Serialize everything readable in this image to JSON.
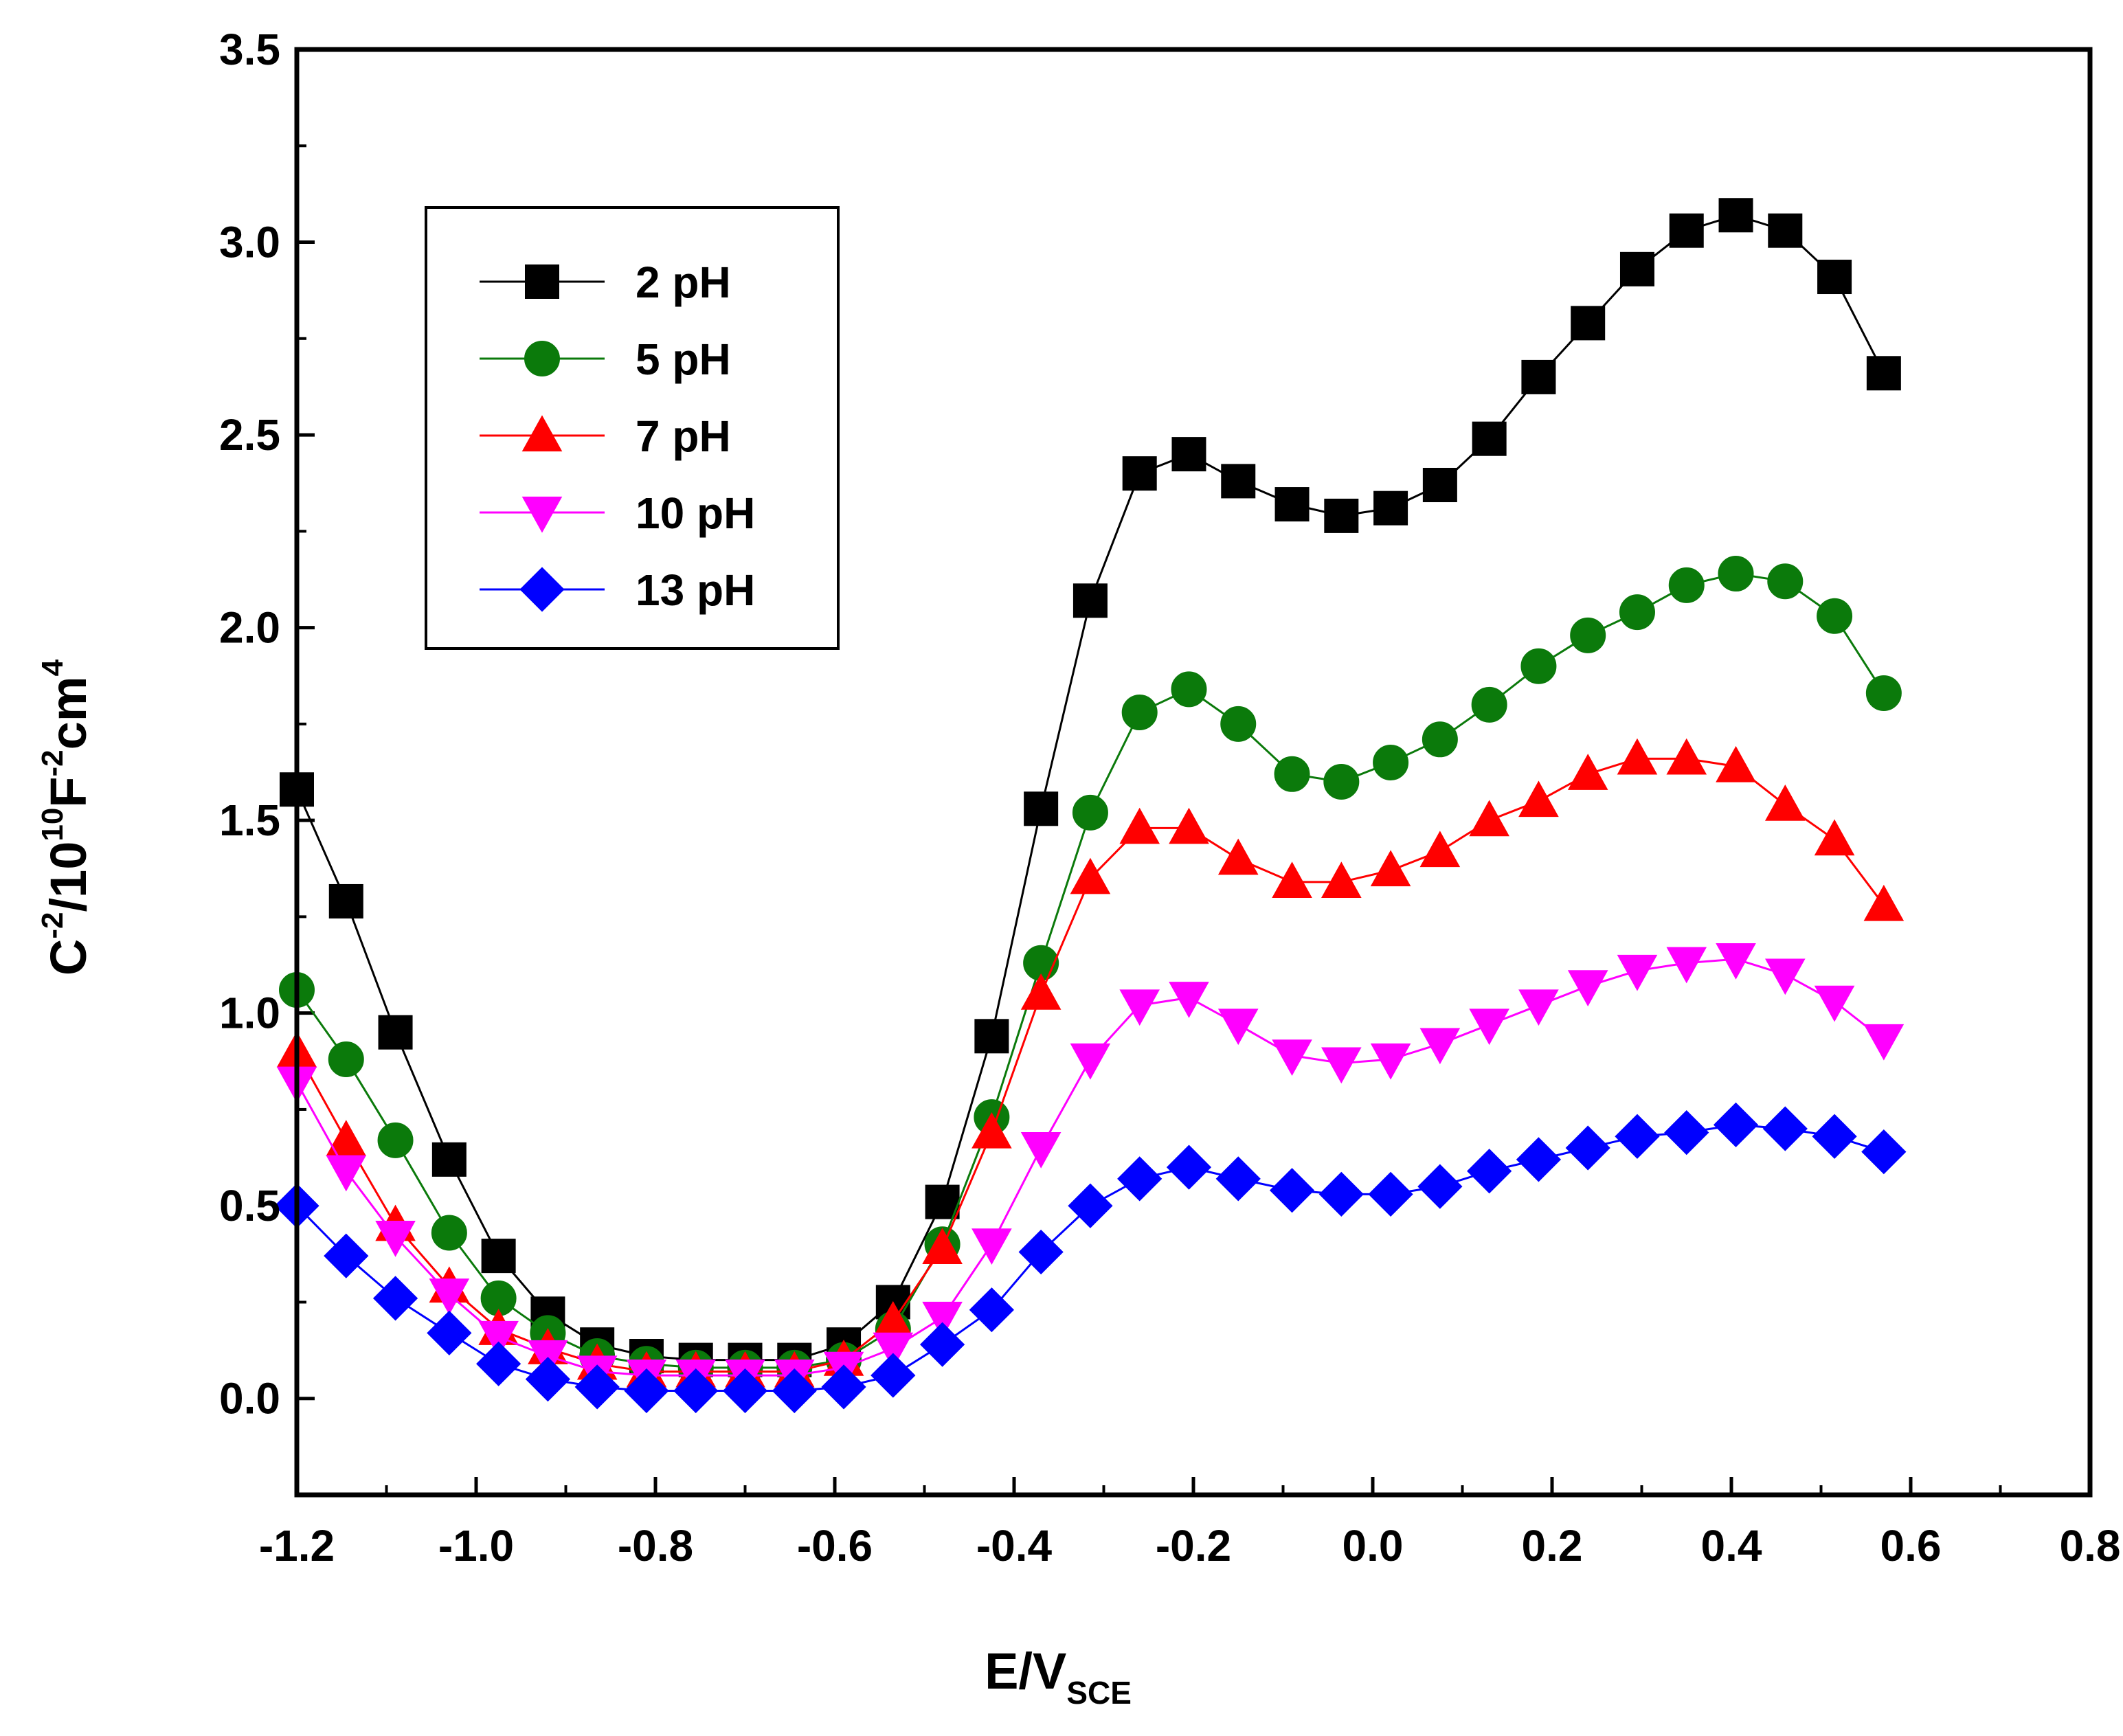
{
  "chart_data": {
    "type": "line",
    "title": "",
    "xlabel": "E/V",
    "xlabel_sub": "SCE",
    "ylabel_parts": [
      "C",
      "-2",
      "/10",
      "10",
      "F",
      "-2",
      "cm",
      "4"
    ],
    "xlim": [
      -1.2,
      0.8
    ],
    "ylim": [
      -0.25,
      3.5
    ],
    "xticks": [
      "-1.2",
      "-1.0",
      "-0.8",
      "-0.6",
      "-0.4",
      "-0.2",
      "0.0",
      "0.2",
      "0.4",
      "0.6",
      "0.8"
    ],
    "yticks": [
      "0.0",
      "0.5",
      "1.0",
      "1.5",
      "2.0",
      "2.5",
      "3.0",
      "3.5"
    ],
    "x": [
      -1.2,
      -1.145,
      -1.09,
      -1.03,
      -0.975,
      -0.92,
      -0.865,
      -0.81,
      -0.755,
      -0.7,
      -0.645,
      -0.59,
      -0.535,
      -0.48,
      -0.425,
      -0.37,
      -0.315,
      -0.26,
      -0.205,
      -0.15,
      -0.09,
      -0.035,
      0.02,
      0.075,
      0.13,
      0.185,
      0.24,
      0.295,
      0.35,
      0.405,
      0.46,
      0.515,
      0.57
    ],
    "legend_position": "top-left",
    "series": [
      {
        "name": "2 pH",
        "marker": "square",
        "color": "#000000",
        "values": [
          1.58,
          1.29,
          0.95,
          0.62,
          0.37,
          0.22,
          0.14,
          0.11,
          0.1,
          0.1,
          0.1,
          0.14,
          0.25,
          0.51,
          0.94,
          1.53,
          2.07,
          2.4,
          2.45,
          2.38,
          2.32,
          2.29,
          2.31,
          2.37,
          2.49,
          2.65,
          2.79,
          2.93,
          3.03,
          3.07,
          3.03,
          2.91,
          2.66
        ]
      },
      {
        "name": "5 pH",
        "marker": "circle",
        "color": "#0b7a0b",
        "values": [
          1.06,
          0.88,
          0.67,
          0.43,
          0.26,
          0.17,
          0.11,
          0.09,
          0.08,
          0.08,
          0.08,
          0.1,
          0.18,
          0.4,
          0.73,
          1.13,
          1.52,
          1.78,
          1.84,
          1.75,
          1.62,
          1.6,
          1.65,
          1.71,
          1.8,
          1.9,
          1.98,
          2.04,
          2.11,
          2.14,
          2.12,
          2.03,
          1.83
        ]
      },
      {
        "name": "7 pH",
        "marker": "triangle-up",
        "color": "#ff0000",
        "values": [
          0.9,
          0.67,
          0.45,
          0.29,
          0.18,
          0.13,
          0.09,
          0.07,
          0.07,
          0.07,
          0.07,
          0.1,
          0.2,
          0.39,
          0.69,
          1.05,
          1.35,
          1.48,
          1.48,
          1.4,
          1.34,
          1.34,
          1.37,
          1.42,
          1.5,
          1.55,
          1.62,
          1.66,
          1.66,
          1.64,
          1.54,
          1.45,
          1.28
        ]
      },
      {
        "name": "10 pH",
        "marker": "triangle-down",
        "color": "#ff00ff",
        "values": [
          0.82,
          0.59,
          0.42,
          0.27,
          0.16,
          0.11,
          0.07,
          0.06,
          0.06,
          0.06,
          0.06,
          0.08,
          0.13,
          0.21,
          0.4,
          0.65,
          0.88,
          1.02,
          1.04,
          0.97,
          0.89,
          0.87,
          0.88,
          0.92,
          0.97,
          1.02,
          1.07,
          1.11,
          1.13,
          1.14,
          1.1,
          1.03,
          0.93
        ]
      },
      {
        "name": "13 pH",
        "marker": "diamond",
        "color": "#0000ff",
        "values": [
          0.5,
          0.37,
          0.26,
          0.17,
          0.09,
          0.05,
          0.03,
          0.02,
          0.02,
          0.02,
          0.02,
          0.03,
          0.06,
          0.14,
          0.23,
          0.38,
          0.5,
          0.57,
          0.6,
          0.57,
          0.54,
          0.53,
          0.53,
          0.55,
          0.59,
          0.62,
          0.65,
          0.68,
          0.69,
          0.71,
          0.7,
          0.68,
          0.64
        ]
      }
    ]
  }
}
